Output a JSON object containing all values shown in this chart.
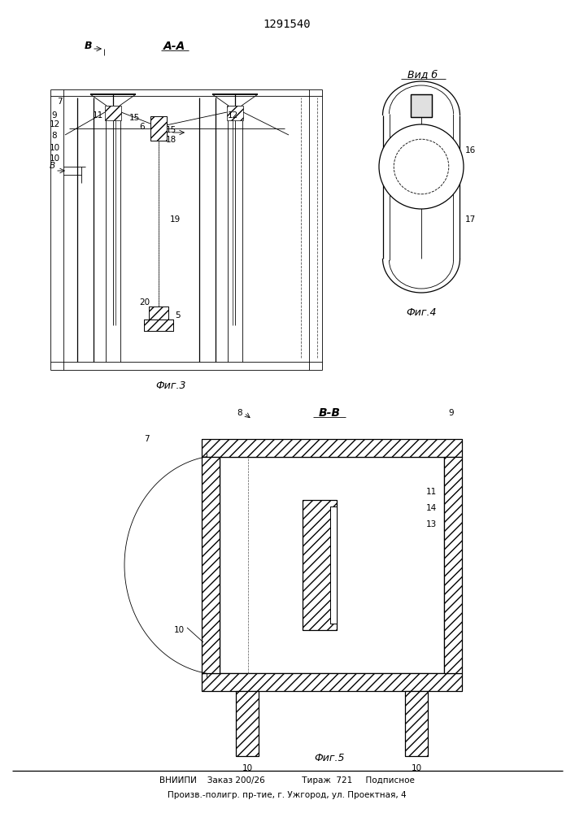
{
  "title": "1291540",
  "bg_color": "#ffffff",
  "line_color": "#000000",
  "bottom_text_line1": "ВНИИПИ    Заказ 200/26              Тираж  721     Подписное",
  "bottom_text_line2": "Произв.-полигр. пр-тие, г. Ужгород, ул. Проектная, 4",
  "fig3_label": "Фиг.3",
  "fig4_label": "Фиг.4",
  "fig5_label": "Фиг.5",
  "view_b_label": "Вид б",
  "section_aa_label": "А-А",
  "section_bb_label": "В-В"
}
